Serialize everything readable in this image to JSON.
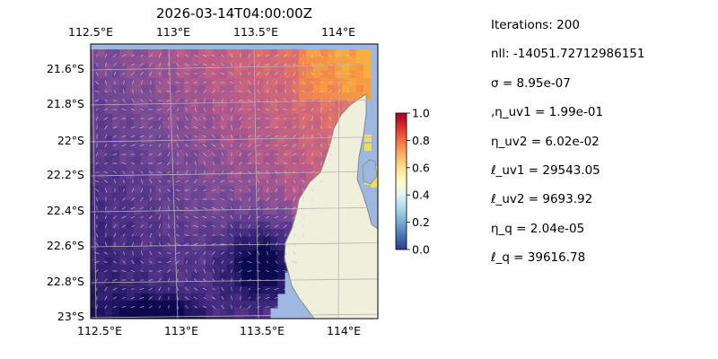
{
  "title": "2026-03-14T04:00:00Z",
  "map": {
    "lon_ticks": [
      "112.5°E",
      "113°E",
      "113.5°E",
      "114°E"
    ],
    "lat_ticks": [
      "21.6°S",
      "21.8°S",
      "22°S",
      "22.2°S",
      "22.4°S",
      "22.6°S",
      "22.8°S",
      "23°S"
    ],
    "colormap": "RdYlBu_r (overlaid with plasma)",
    "ocean_color": "#9db8e0",
    "land_color": "#efefdc",
    "coast_color": "#888888",
    "gridlines": true
  },
  "colorbar": {
    "min": 0.0,
    "max": 1.0,
    "tick_labels": [
      "0.0",
      "0.2",
      "0.4",
      "0.6",
      "0.8",
      "1.0"
    ]
  },
  "parameters": [
    "Iterations: 200",
    "nll: -14051.72712986151",
    "σ = 8.95e-07",
    ",η_uv1 = 1.99e-01",
    "η_uv2 = 6.02e-02",
    "ℓ_uv1 = 29543.05",
    "ℓ_uv2 = 9693.92",
    "η_q = 2.04e-05",
    "ℓ_q = 39616.78"
  ]
}
